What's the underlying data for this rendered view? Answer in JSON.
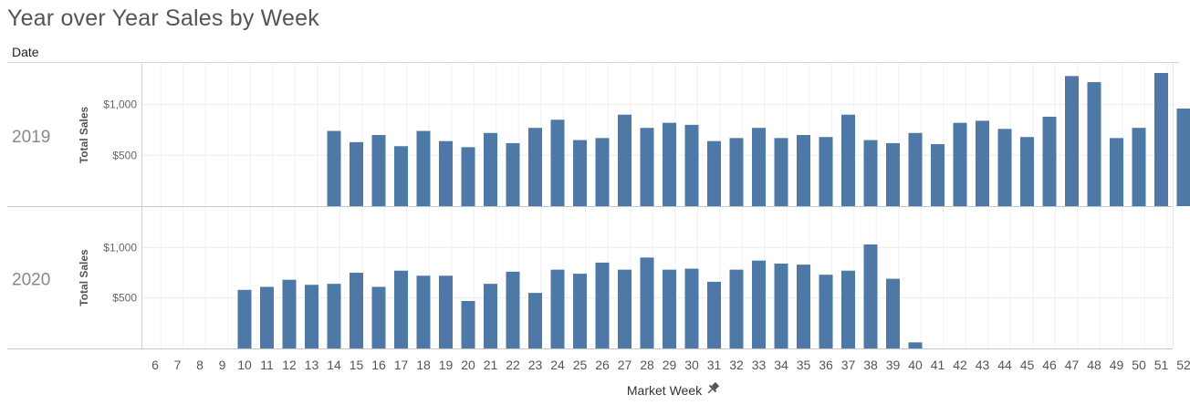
{
  "title": "Year over Year Sales by Week",
  "column_header": "Date",
  "pin_icon": "pin-icon",
  "chart_data": {
    "type": "bar",
    "title": "Year over Year Sales by Week",
    "xlabel": "Market Week",
    "ylabel": "Total Sales",
    "categories": [
      6,
      7,
      8,
      9,
      10,
      11,
      12,
      13,
      14,
      15,
      16,
      17,
      18,
      19,
      20,
      21,
      22,
      23,
      24,
      25,
      26,
      27,
      28,
      29,
      30,
      31,
      32,
      33,
      34,
      35,
      36,
      37,
      38,
      39,
      40,
      41,
      42,
      43,
      44,
      45,
      46,
      47,
      48,
      49,
      50,
      51,
      52
    ],
    "ylim": [
      0,
      1400
    ],
    "y_ticks": [
      500,
      1000
    ],
    "y_tick_labels": [
      "$500",
      "$1,000"
    ],
    "bar_color": "#4e79a7",
    "grid": true,
    "panels": [
      {
        "row_label": "2019",
        "values": [
          null,
          null,
          null,
          null,
          null,
          null,
          null,
          null,
          740,
          630,
          700,
          590,
          740,
          640,
          580,
          720,
          620,
          770,
          850,
          650,
          670,
          900,
          770,
          820,
          800,
          640,
          670,
          770,
          670,
          700,
          680,
          900,
          650,
          620,
          720,
          610,
          820,
          840,
          760,
          680,
          880,
          1280,
          1220,
          670,
          770,
          1310,
          960
        ]
      },
      {
        "row_label": "2020",
        "values": [
          null,
          null,
          null,
          null,
          580,
          610,
          680,
          630,
          640,
          750,
          610,
          770,
          720,
          720,
          470,
          640,
          760,
          550,
          780,
          740,
          850,
          780,
          900,
          780,
          790,
          660,
          780,
          870,
          840,
          830,
          730,
          770,
          1030,
          690,
          60,
          null,
          null,
          null,
          null,
          null,
          null,
          null,
          null,
          null,
          null,
          null,
          null
        ]
      }
    ]
  }
}
